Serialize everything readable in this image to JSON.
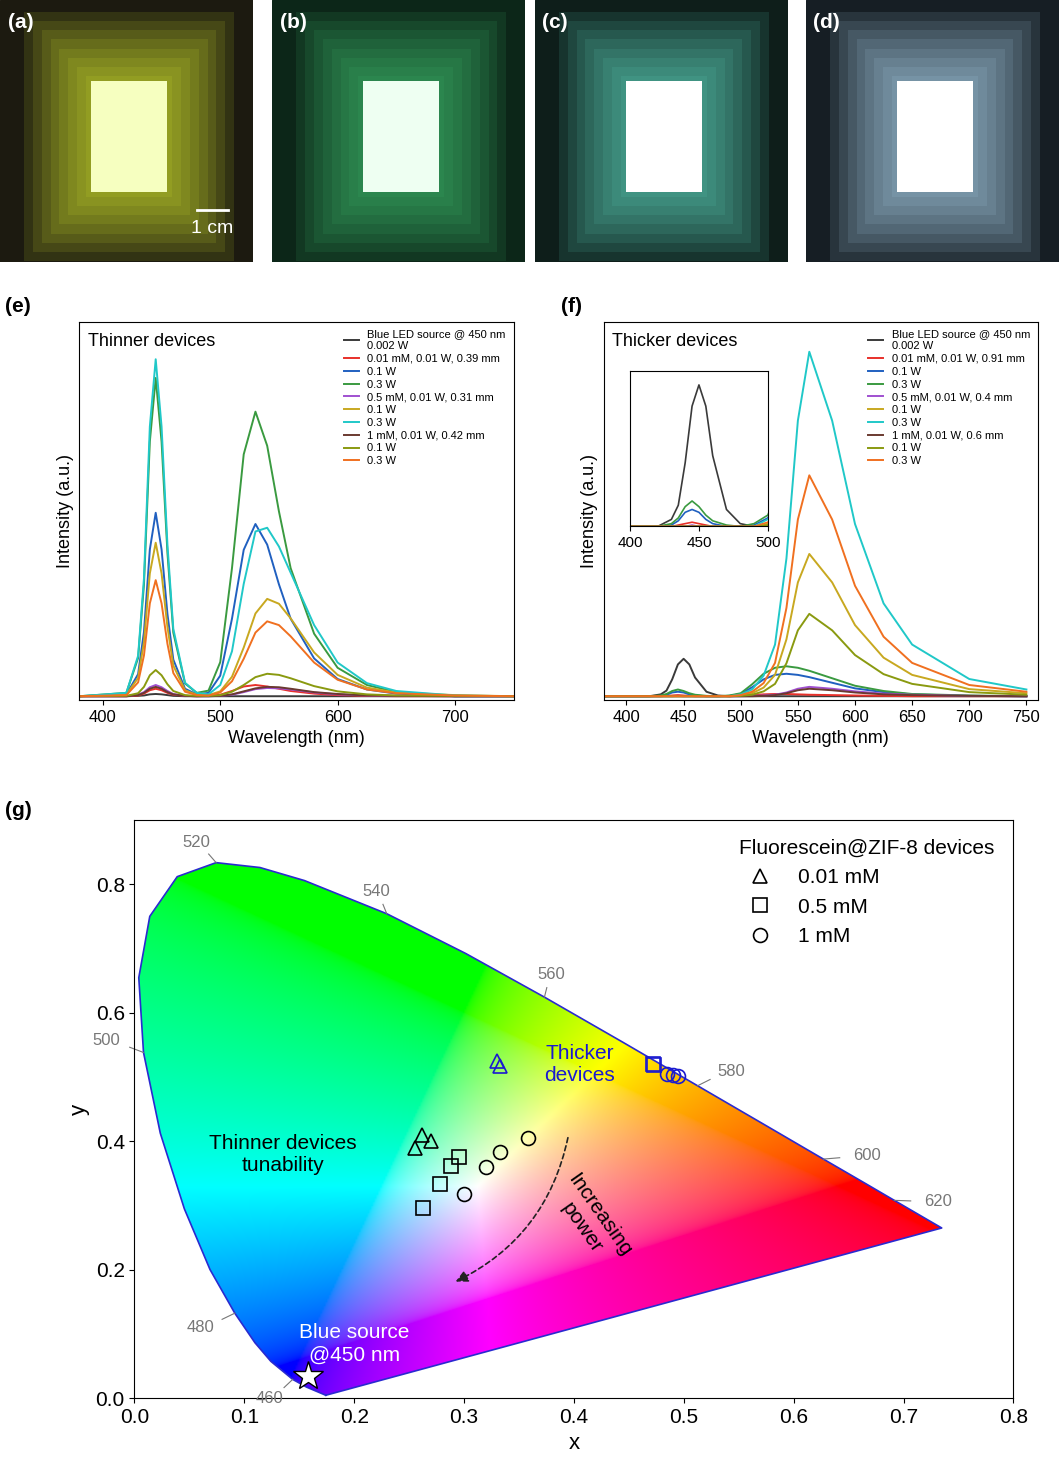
{
  "photos": [
    {
      "label": "(a)",
      "background": "#1c1a10",
      "glow": "#d8e830",
      "core": "#f6ffc0",
      "scale_bar": "1 cm"
    },
    {
      "label": "(b)",
      "background": "#0c2618",
      "glow": "#40c070",
      "core": "#eefff2"
    },
    {
      "label": "(c)",
      "background": "#0e1e1a",
      "glow": "#60d8c0",
      "core": "#ffffff"
    },
    {
      "label": "(d)",
      "background": "#161e24",
      "glow": "#b0d8f0",
      "core": "#ffffff"
    }
  ],
  "chart_data": [
    {
      "type": "line",
      "panel": "(e)",
      "annotations": [
        "Thinner devices"
      ],
      "xlabel": "Wavelength (nm)",
      "ylabel": "Intensity (a.u.)",
      "xlim": [
        380,
        750
      ],
      "xticks": [
        400,
        500,
        600,
        700
      ],
      "ylim": [
        -0.01,
        1.0
      ],
      "tick_labels": "x",
      "legend": "upper right",
      "x": [
        380,
        420,
        430,
        435,
        440,
        445,
        450,
        455,
        460,
        470,
        480,
        490,
        500,
        510,
        520,
        530,
        540,
        550,
        560,
        580,
        600,
        625,
        650,
        700,
        750
      ],
      "series": [
        {
          "name": "Blue LED source @ 450 nm\n0.002 W",
          "color": "#3a3a3a",
          "values": [
            0,
            0,
            0.001,
            0.002,
            0.005,
            0.006,
            0.005,
            0.003,
            0.001,
            0,
            0,
            0,
            0,
            0,
            0,
            0,
            0,
            0,
            0,
            0,
            0,
            0,
            0,
            0,
            0
          ]
        },
        {
          "name": "0.01 mM, 0.01 W, 0.39 mm",
          "color": "#e8302a",
          "values": [
            0,
            0,
            0.002,
            0.007,
            0.016,
            0.02,
            0.016,
            0.009,
            0.004,
            0.001,
            0,
            0.001,
            0.004,
            0.014,
            0.026,
            0.03,
            0.026,
            0.02,
            0.014,
            0.007,
            0.003,
            0.001,
            0,
            0,
            0
          ]
        },
        {
          "name": "0.1 W",
          "color": "#2060c0",
          "values": [
            0,
            0.005,
            0.059,
            0.172,
            0.392,
            0.49,
            0.392,
            0.22,
            0.098,
            0.02,
            0.005,
            0.009,
            0.055,
            0.207,
            0.391,
            0.46,
            0.405,
            0.299,
            0.207,
            0.101,
            0.046,
            0.018,
            0.007,
            0,
            0
          ]
        },
        {
          "name": "0.3 W",
          "color": "#3a9a40",
          "values": [
            0,
            0.009,
            0.102,
            0.298,
            0.68,
            0.85,
            0.68,
            0.383,
            0.17,
            0.034,
            0.009,
            0.015,
            0.091,
            0.342,
            0.646,
            0.76,
            0.669,
            0.494,
            0.342,
            0.167,
            0.076,
            0.03,
            0.011,
            0,
            0
          ]
        },
        {
          "name": "0.5 mM, 0.01 W, 0.31 mm",
          "color": "#a050d0",
          "values": [
            0,
            0,
            0.004,
            0.011,
            0.024,
            0.03,
            0.024,
            0.014,
            0.006,
            0.001,
            0,
            0,
            0.001,
            0.004,
            0.011,
            0.019,
            0.022,
            0.021,
            0.018,
            0.01,
            0.005,
            0.002,
            0.001,
            0,
            0
          ]
        },
        {
          "name": "0.1 W",
          "color": "#c8a820",
          "values": [
            0,
            0.004,
            0.049,
            0.144,
            0.328,
            0.41,
            0.328,
            0.185,
            0.082,
            0.016,
            0.004,
            0.003,
            0.013,
            0.052,
            0.13,
            0.221,
            0.26,
            0.247,
            0.208,
            0.117,
            0.057,
            0.023,
            0.01,
            0.003,
            0
          ]
        },
        {
          "name": "0.3 W",
          "color": "#20c8c8",
          "values": [
            0,
            0.009,
            0.108,
            0.315,
            0.72,
            0.9,
            0.72,
            0.405,
            0.18,
            0.036,
            0.009,
            0.005,
            0.03,
            0.12,
            0.3,
            0.44,
            0.45,
            0.4,
            0.33,
            0.19,
            0.09,
            0.035,
            0.014,
            0.002,
            0
          ]
        },
        {
          "name": "1 mM, 0.01 W, 0.42 mm",
          "color": "#6a3a30",
          "values": [
            0,
            0,
            0.003,
            0.009,
            0.02,
            0.025,
            0.02,
            0.011,
            0.005,
            0.001,
            0,
            0,
            0.001,
            0.005,
            0.013,
            0.021,
            0.025,
            0.024,
            0.02,
            0.011,
            0.006,
            0.002,
            0.001,
            0,
            0
          ]
        },
        {
          "name": "0.1 W",
          "color": "#8a9a10",
          "values": [
            0,
            0.001,
            0.008,
            0.025,
            0.056,
            0.07,
            0.056,
            0.032,
            0.014,
            0.003,
            0.001,
            0.001,
            0.003,
            0.012,
            0.03,
            0.051,
            0.06,
            0.057,
            0.048,
            0.027,
            0.013,
            0.005,
            0.002,
            0.001,
            0
          ]
        },
        {
          "name": "0.3 W",
          "color": "#f07020",
          "values": [
            0,
            0.003,
            0.037,
            0.109,
            0.248,
            0.31,
            0.248,
            0.14,
            0.062,
            0.012,
            0.003,
            0.002,
            0.01,
            0.04,
            0.1,
            0.17,
            0.2,
            0.19,
            0.16,
            0.09,
            0.044,
            0.018,
            0.008,
            0.002,
            0
          ]
        }
      ]
    },
    {
      "type": "line",
      "panel": "(f)",
      "annotations": [
        "Thicker devices"
      ],
      "xlabel": "Wavelength (nm)",
      "ylabel": "Intensity (a.u.)",
      "xlim": [
        380,
        760
      ],
      "xticks": [
        400,
        450,
        500,
        550,
        600,
        650,
        700,
        750
      ],
      "ylim": [
        -0.01,
        1.0
      ],
      "tick_labels": "x",
      "legend": "upper right",
      "inset": {
        "xlim": [
          400,
          500
        ],
        "xticks": [
          400,
          450,
          500
        ],
        "ylim": [
          0,
          0.11
        ],
        "tick_labels": "x"
      },
      "x": [
        380,
        420,
        430,
        435,
        440,
        445,
        450,
        455,
        460,
        470,
        480,
        490,
        500,
        510,
        520,
        530,
        540,
        550,
        560,
        580,
        600,
        625,
        650,
        700,
        750
      ],
      "series": [
        {
          "name": "Blue LED source @ 450 nm\n0.002 W",
          "color": "#3a3a3a",
          "values": [
            0,
            0,
            0.005,
            0.015,
            0.045,
            0.085,
            0.1,
            0.085,
            0.05,
            0.012,
            0.002,
            0,
            0,
            0,
            0,
            0,
            0,
            0,
            0,
            0,
            0,
            0,
            0,
            0,
            0
          ]
        },
        {
          "name": "0.01 mM, 0.01 W, 0.91 mm",
          "color": "#e8302a",
          "values": [
            0,
            0,
            0,
            0.001,
            0.002,
            0.003,
            0.002,
            0.001,
            0,
            0,
            0,
            0,
            0.001,
            0.003,
            0.005,
            0.006,
            0.006,
            0.005,
            0.004,
            0.003,
            0.002,
            0.001,
            0,
            0,
            0
          ]
        },
        {
          "name": "0.1 W",
          "color": "#2060c0",
          "values": [
            0,
            0,
            0.001,
            0.004,
            0.01,
            0.012,
            0.01,
            0.005,
            0.002,
            0,
            0,
            0.001,
            0.006,
            0.024,
            0.045,
            0.057,
            0.06,
            0.057,
            0.051,
            0.036,
            0.021,
            0.011,
            0.005,
            0.001,
            0
          ]
        },
        {
          "name": "0.3 W",
          "color": "#3a9a40",
          "values": [
            0,
            0,
            0.002,
            0.006,
            0.014,
            0.018,
            0.014,
            0.008,
            0.004,
            0.001,
            0,
            0.002,
            0.008,
            0.032,
            0.06,
            0.076,
            0.08,
            0.076,
            0.068,
            0.048,
            0.028,
            0.014,
            0.006,
            0.002,
            0
          ]
        },
        {
          "name": "0.5 mM, 0.01 W, 0.4 mm",
          "color": "#a050d0",
          "values": [
            0,
            0,
            0,
            0,
            0,
            0.001,
            0,
            0,
            0,
            0,
            0,
            0,
            0,
            0.001,
            0.002,
            0.004,
            0.01,
            0.02,
            0.025,
            0.02,
            0.013,
            0.007,
            0.004,
            0.001,
            0
          ]
        },
        {
          "name": "0.1 W",
          "color": "#c8a820",
          "values": [
            0,
            0,
            0,
            0,
            0,
            0,
            0,
            0,
            0,
            0,
            0,
            0,
            0.002,
            0.008,
            0.023,
            0.057,
            0.152,
            0.304,
            0.38,
            0.304,
            0.19,
            0.103,
            0.057,
            0.019,
            0.008
          ]
        },
        {
          "name": "0.3 W",
          "color": "#20c8c8",
          "values": [
            0,
            0,
            0,
            0,
            0,
            0,
            0,
            0,
            0,
            0,
            0,
            0,
            0.005,
            0.018,
            0.055,
            0.138,
            0.368,
            0.736,
            0.92,
            0.736,
            0.46,
            0.248,
            0.138,
            0.046,
            0.018
          ]
        },
        {
          "name": "1 mM, 0.01 W, 0.6 mm",
          "color": "#6a3a30",
          "values": [
            0,
            0,
            0,
            0,
            0,
            0,
            0,
            0,
            0,
            0,
            0,
            0,
            0,
            0,
            0.001,
            0.003,
            0.008,
            0.016,
            0.02,
            0.016,
            0.01,
            0.005,
            0.003,
            0.001,
            0
          ]
        },
        {
          "name": "0.1 W",
          "color": "#8a9a10",
          "values": [
            0,
            0,
            0,
            0,
            0,
            0,
            0,
            0,
            0,
            0,
            0,
            0,
            0.001,
            0.004,
            0.013,
            0.033,
            0.088,
            0.176,
            0.22,
            0.176,
            0.11,
            0.059,
            0.033,
            0.011,
            0.004
          ]
        },
        {
          "name": "0.3 W",
          "color": "#f07020",
          "values": [
            0,
            0,
            0,
            0,
            0,
            0,
            0,
            0,
            0,
            0,
            0,
            0,
            0.003,
            0.012,
            0.035,
            0.089,
            0.236,
            0.472,
            0.59,
            0.472,
            0.295,
            0.159,
            0.089,
            0.03,
            0.012
          ]
        }
      ]
    },
    {
      "type": "scatter",
      "panel": "(g)",
      "xlabel": "x",
      "ylabel": "y",
      "xlim": [
        0.0,
        0.8
      ],
      "xticks": [
        0.0,
        0.1,
        0.2,
        0.3,
        0.4,
        0.5,
        0.6,
        0.7,
        0.8
      ],
      "ylim": [
        0.0,
        0.9
      ],
      "yticks": [
        0.0,
        0.2,
        0.4,
        0.6,
        0.8
      ],
      "legend": "upper right",
      "legend_title": "Fluorescein@ZIF-8 devices",
      "annotations": [
        "Thinner devices\ntunability",
        "Thicker\ndevices",
        "Increasing\npower",
        "Blue source\n@450 nm"
      ],
      "locus": {
        "wavelengths": [
          380,
          450,
          460,
          470,
          475,
          480,
          485,
          490,
          495,
          500,
          505,
          510,
          515,
          520,
          525,
          530,
          540,
          550,
          560,
          570,
          580,
          590,
          600,
          610,
          620,
          640,
          700
        ],
        "x": [
          0.1741,
          0.1566,
          0.144,
          0.1241,
          0.1096,
          0.0913,
          0.0687,
          0.0454,
          0.0235,
          0.0082,
          0.0039,
          0.0139,
          0.0389,
          0.0743,
          0.1142,
          0.1547,
          0.2296,
          0.3016,
          0.3731,
          0.4441,
          0.5125,
          0.5752,
          0.627,
          0.6658,
          0.6915,
          0.719,
          0.7347
        ],
        "y": [
          0.005,
          0.0177,
          0.0297,
          0.0578,
          0.0868,
          0.1327,
          0.2007,
          0.295,
          0.4127,
          0.5384,
          0.6548,
          0.7502,
          0.812,
          0.8338,
          0.8262,
          0.8059,
          0.7543,
          0.6923,
          0.6245,
          0.5547,
          0.4866,
          0.4242,
          0.3725,
          0.334,
          0.3083,
          0.2809,
          0.2653
        ],
        "labels": [
          460,
          480,
          500,
          520,
          540,
          560,
          580,
          600,
          620
        ]
      },
      "series": [
        {
          "name": "0.01 mM",
          "marker": "triangle",
          "color": "#000000",
          "x": [
            0.255,
            0.262,
            0.27
          ],
          "y": [
            0.39,
            0.41,
            0.4
          ]
        },
        {
          "name": "0.5 mM",
          "marker": "square",
          "color": "#000000",
          "x": [
            0.263,
            0.278,
            0.288,
            0.295
          ],
          "y": [
            0.297,
            0.333,
            0.362,
            0.376
          ]
        },
        {
          "name": "1 mM",
          "marker": "circle",
          "color": "#000000",
          "x": [
            0.3,
            0.32,
            0.333,
            0.358
          ],
          "y": [
            0.318,
            0.36,
            0.383,
            0.405
          ]
        },
        {
          "marker": "triangle",
          "color": "#1a1ad0",
          "x": [
            0.33,
            0.333
          ],
          "y": [
            0.525,
            0.517
          ]
        },
        {
          "marker": "square",
          "color": "#1a1ad0",
          "x": [
            0.472,
            0.473
          ],
          "y": [
            0.52,
            0.519
          ]
        },
        {
          "marker": "circle",
          "color": "#1a1ad0",
          "x": [
            0.485,
            0.49,
            0.495
          ],
          "y": [
            0.505,
            0.503,
            0.502
          ]
        },
        {
          "marker": "star",
          "color": "#ffffff",
          "x": [
            0.158
          ],
          "y": [
            0.035
          ]
        }
      ]
    }
  ]
}
